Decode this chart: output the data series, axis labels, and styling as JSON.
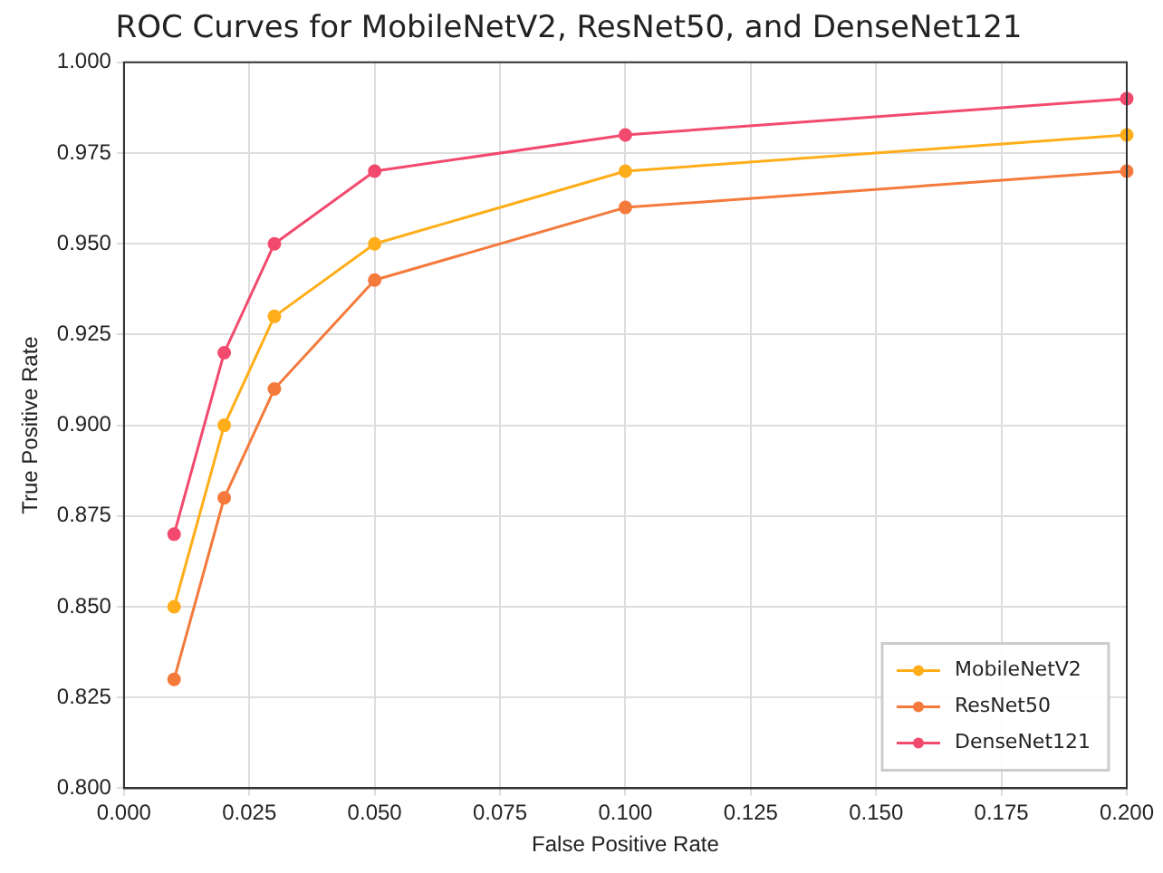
{
  "chart_data": {
    "type": "line",
    "title": "ROC Curves for MobileNetV2, ResNet50, and DenseNet121",
    "xlabel": "False Positive Rate",
    "ylabel": "True Positive Rate",
    "x": [
      0.01,
      0.02,
      0.03,
      0.05,
      0.1,
      0.2
    ],
    "series": [
      {
        "name": "MobileNetV2",
        "color": "#ffae1a",
        "values": [
          0.85,
          0.9,
          0.93,
          0.95,
          0.97,
          0.98
        ]
      },
      {
        "name": "ResNet50",
        "color": "#f47a3c",
        "values": [
          0.83,
          0.88,
          0.91,
          0.94,
          0.96,
          0.97
        ]
      },
      {
        "name": "DenseNet121",
        "color": "#f24a6e",
        "values": [
          0.87,
          0.92,
          0.95,
          0.97,
          0.98,
          0.99
        ]
      }
    ],
    "xlim": [
      0,
      0.2
    ],
    "xticks": [
      {
        "value": 0,
        "label": "0.000"
      },
      {
        "value": 0.025,
        "label": "0.025"
      },
      {
        "value": 0.05,
        "label": "0.050"
      },
      {
        "value": 0.075,
        "label": "0.075"
      },
      {
        "value": 0.1,
        "label": "0.100"
      },
      {
        "value": 0.125,
        "label": "0.125"
      },
      {
        "value": 0.15,
        "label": "0.150"
      },
      {
        "value": 0.175,
        "label": "0.175"
      },
      {
        "value": 0.2,
        "label": "0.200"
      }
    ],
    "ylim": [
      0.8,
      1
    ],
    "yticks": [
      {
        "value": 0.8,
        "label": "0.800"
      },
      {
        "value": 0.825,
        "label": "0.825"
      },
      {
        "value": 0.85,
        "label": "0.850"
      },
      {
        "value": 0.875,
        "label": "0.875"
      },
      {
        "value": 0.9,
        "label": "0.900"
      },
      {
        "value": 0.925,
        "label": "0.925"
      },
      {
        "value": 0.95,
        "label": "0.950"
      },
      {
        "value": 0.975,
        "label": "0.975"
      },
      {
        "value": 1,
        "label": "1.000"
      }
    ],
    "grid": true,
    "legend": "bottom right",
    "marker": "circle",
    "line_style": "solid"
  }
}
